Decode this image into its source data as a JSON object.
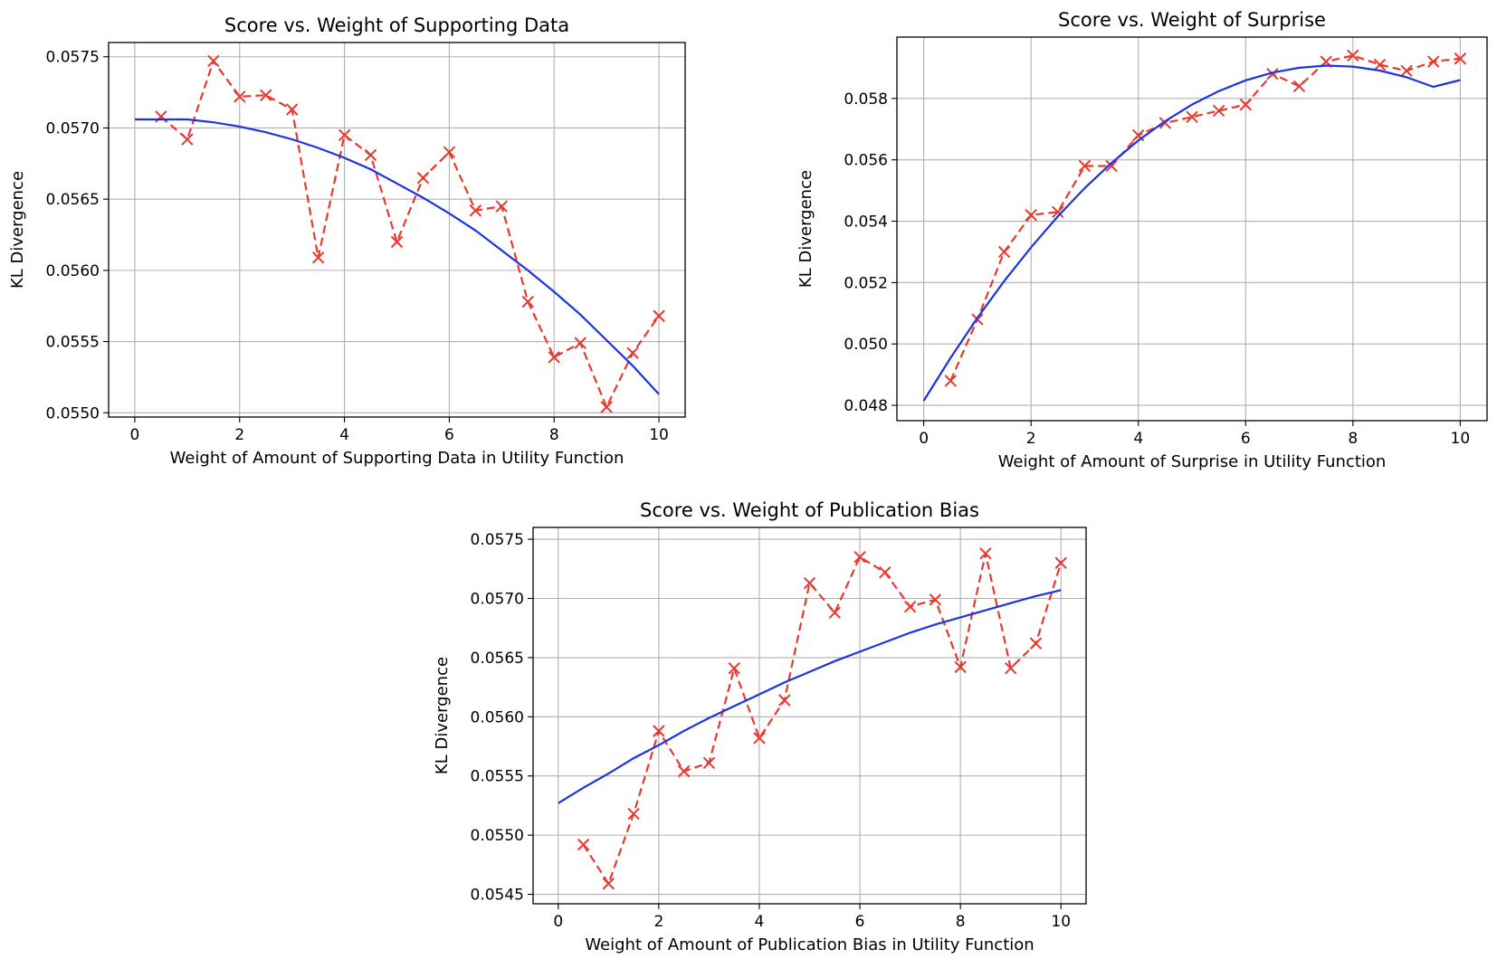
{
  "chart_data": [
    {
      "type": "line",
      "title": "Score vs. Weight of Supporting Data",
      "xlabel": "Weight of Amount of Supporting Data in Utility Function",
      "ylabel": "KL Divergence",
      "xlim": [
        -0.5,
        10.5
      ],
      "ylim": [
        0.05497,
        0.0576
      ],
      "xticks": [
        0,
        2,
        4,
        6,
        8,
        10
      ],
      "xtick_labels": [
        "0",
        "2",
        "4",
        "6",
        "8",
        "10"
      ],
      "yticks": [
        0.055,
        0.0555,
        0.056,
        0.0565,
        0.057,
        0.0575
      ],
      "ytick_labels": [
        "0.0550",
        "0.0555",
        "0.0560",
        "0.0565",
        "0.0570",
        "0.0575"
      ],
      "grid": true,
      "series": [
        {
          "style": "dashed-x-markers",
          "color": "#e8392e",
          "x": [
            0.5,
            1,
            1.5,
            2,
            2.5,
            3,
            3.5,
            4,
            4.5,
            5,
            5.5,
            6,
            6.5,
            7,
            7.5,
            8,
            8.5,
            9,
            9.5,
            10
          ],
          "y": [
            0.05708,
            0.05692,
            0.05747,
            0.05722,
            0.05723,
            0.05713,
            0.05609,
            0.05695,
            0.05681,
            0.0562,
            0.05665,
            0.05683,
            0.05642,
            0.05645,
            0.05578,
            0.05539,
            0.05549,
            0.05504,
            0.05542,
            0.05568
          ]
        },
        {
          "style": "solid-fit",
          "color": "#1a33e6",
          "x": [
            0,
            0.5,
            1,
            1.5,
            2,
            2.5,
            3,
            3.5,
            4,
            4.5,
            5,
            5.5,
            6,
            6.5,
            7,
            7.5,
            8,
            8.5,
            9,
            9.5,
            10
          ],
          "y": [
            0.05706,
            0.05706,
            0.05706,
            0.05704,
            0.05701,
            0.05697,
            0.05692,
            0.05686,
            0.05679,
            0.05671,
            0.05661,
            0.05651,
            0.0564,
            0.05628,
            0.05614,
            0.056,
            0.05585,
            0.05569,
            0.05551,
            0.05533,
            0.05513
          ]
        }
      ]
    },
    {
      "type": "line",
      "title": "Score vs. Weight of Surprise",
      "xlabel": "Weight of Amount of Surprise in Utility Function",
      "ylabel": "KL Divergence",
      "xlim": [
        -0.5,
        10.5
      ],
      "ylim": [
        0.0475,
        0.06
      ],
      "xticks": [
        0,
        2,
        4,
        6,
        8,
        10
      ],
      "xtick_labels": [
        "0",
        "2",
        "4",
        "6",
        "8",
        "10"
      ],
      "yticks": [
        0.048,
        0.05,
        0.052,
        0.054,
        0.056,
        0.058
      ],
      "ytick_labels": [
        "0.048",
        "0.050",
        "0.052",
        "0.054",
        "0.056",
        "0.058"
      ],
      "grid": true,
      "series": [
        {
          "style": "dashed-x-markers",
          "color": "#e8392e",
          "x": [
            0.5,
            1,
            1.5,
            2,
            2.5,
            3,
            3.5,
            4,
            4.5,
            5,
            5.5,
            6,
            6.5,
            7,
            7.5,
            8,
            8.5,
            9,
            9.5,
            10
          ],
          "y": [
            0.0488,
            0.0508,
            0.053,
            0.0542,
            0.0543,
            0.0558,
            0.0558,
            0.0568,
            0.0572,
            0.0574,
            0.0576,
            0.0578,
            0.0588,
            0.0584,
            0.0592,
            0.0594,
            0.0591,
            0.0589,
            0.0592,
            0.0593
          ]
        },
        {
          "style": "solid-fit",
          "color": "#1a33e6",
          "x": [
            0,
            0.5,
            1,
            1.5,
            2,
            2.5,
            3,
            3.5,
            4,
            4.5,
            5,
            5.5,
            6,
            6.5,
            7,
            7.5,
            8,
            8.5,
            9,
            9.5,
            10
          ],
          "y": [
            0.04815,
            0.04955,
            0.05085,
            0.05205,
            0.05315,
            0.05416,
            0.05508,
            0.0559,
            0.05663,
            0.05726,
            0.0578,
            0.05824,
            0.05859,
            0.05884,
            0.059,
            0.05907,
            0.05904,
            0.05891,
            0.05869,
            0.05838,
            0.0586
          ]
        }
      ]
    },
    {
      "type": "line",
      "title": "Score vs. Weight of Publication Bias",
      "xlabel": "Weight of Amount of Publication Bias in Utility Function",
      "ylabel": "KL Divergence",
      "xlim": [
        -0.5,
        10.5
      ],
      "ylim": [
        0.05442,
        0.0576
      ],
      "xticks": [
        0,
        2,
        4,
        6,
        8,
        10
      ],
      "xtick_labels": [
        "0",
        "2",
        "4",
        "6",
        "8",
        "10"
      ],
      "yticks": [
        0.0545,
        0.055,
        0.0555,
        0.056,
        0.0565,
        0.057,
        0.0575
      ],
      "ytick_labels": [
        "0.0545",
        "0.0550",
        "0.0555",
        "0.0560",
        "0.0565",
        "0.0570",
        "0.0575"
      ],
      "grid": true,
      "series": [
        {
          "style": "dashed-x-markers",
          "color": "#e8392e",
          "x": [
            0.5,
            1,
            1.5,
            2,
            2.5,
            3,
            3.5,
            4,
            4.5,
            5,
            5.5,
            6,
            6.5,
            7,
            7.5,
            8,
            8.5,
            9,
            9.5,
            10
          ],
          "y": [
            0.05492,
            0.05459,
            0.05518,
            0.05588,
            0.05554,
            0.05561,
            0.05641,
            0.05582,
            0.05614,
            0.05713,
            0.05688,
            0.05735,
            0.05722,
            0.05693,
            0.05699,
            0.05642,
            0.05738,
            0.05641,
            0.05662,
            0.0573
          ]
        },
        {
          "style": "solid-fit",
          "color": "#1a33e6",
          "x": [
            0,
            0.5,
            1,
            1.5,
            2,
            2.5,
            3,
            3.5,
            4,
            4.5,
            5,
            5.5,
            6,
            6.5,
            7,
            7.5,
            8,
            8.5,
            9,
            9.5,
            10
          ],
          "y": [
            0.05527,
            0.0554,
            0.05552,
            0.05565,
            0.05576,
            0.05588,
            0.05599,
            0.05609,
            0.05619,
            0.05629,
            0.05638,
            0.05647,
            0.05655,
            0.05663,
            0.05671,
            0.05678,
            0.05684,
            0.0569,
            0.05696,
            0.05702,
            0.05707
          ]
        }
      ]
    }
  ]
}
